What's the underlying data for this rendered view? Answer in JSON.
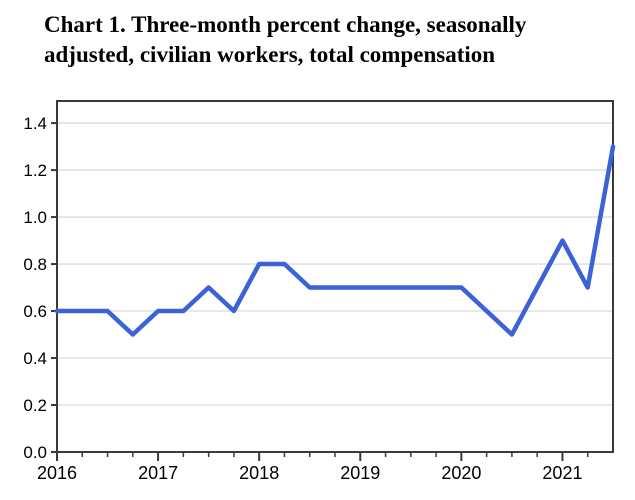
{
  "header": {
    "title": "Chart 1. Three-month percent change, seasonally\nadjusted, civilian workers, total compensation"
  },
  "chart_data": {
    "type": "line",
    "title": "Chart 1. Three-month percent change, seasonally adjusted, civilian workers, total compensation",
    "x": [
      2016.0,
      2016.25,
      2016.5,
      2016.75,
      2017.0,
      2017.25,
      2017.5,
      2017.75,
      2018.0,
      2018.25,
      2018.5,
      2018.75,
      2019.0,
      2019.25,
      2019.5,
      2019.75,
      2020.0,
      2020.25,
      2020.5,
      2020.75,
      2021.0,
      2021.25,
      2021.5
    ],
    "values": [
      0.6,
      0.6,
      0.6,
      0.5,
      0.6,
      0.6,
      0.7,
      0.6,
      0.8,
      0.8,
      0.7,
      0.7,
      0.7,
      0.7,
      0.7,
      0.7,
      0.7,
      0.6,
      0.5,
      0.7,
      0.9,
      0.7,
      1.3
    ],
    "xlabel": "",
    "ylabel": "",
    "xlim": [
      2016,
      2021.5
    ],
    "ylim": [
      0,
      1.494
    ],
    "x_ticks": {
      "major_positions": [
        2016,
        2017,
        2018,
        2019,
        2020,
        2021
      ],
      "major_labels": [
        "2016",
        "2017",
        "2018",
        "2019",
        "2020",
        "2021"
      ],
      "minor_step": 0.25
    },
    "y_ticks": {
      "positions": [
        0.0,
        0.2,
        0.4,
        0.6,
        0.8,
        1.0,
        1.2,
        1.4
      ],
      "labels": [
        "0.0",
        "0.2",
        "0.4",
        "0.6",
        "0.8",
        "1.0",
        "1.2",
        "1.4"
      ]
    },
    "grid": "horizontal",
    "legend": "none",
    "colors": {
      "line": "#3b62d6",
      "frame": "#3a3a3a",
      "gridline": "#dcdcdc",
      "text": "#000000",
      "background": "#ffffff"
    }
  }
}
